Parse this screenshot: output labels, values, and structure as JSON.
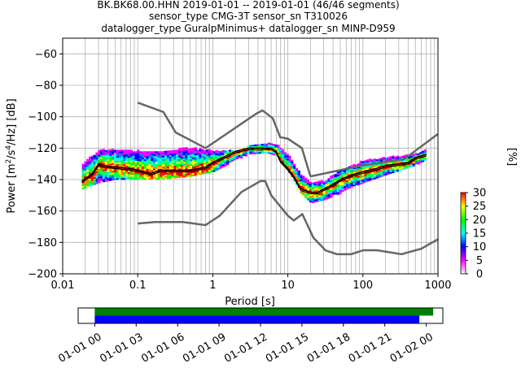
{
  "header": {
    "line1": "BK.BK68.00.HHN   2019-01-01 -- 2019-01-01  (46/46 segments)",
    "line2": "sensor_type CMG-3T sensor_sn T310026",
    "line3": "datalogger_type GuralpMinimus+ datalogger_sn MINP-D959"
  },
  "chart_data": [
    {
      "type": "heatmap",
      "title": "BK.BK68.00.HHN   2019-01-01 -- 2019-01-01  (46/46 segments)",
      "xlabel": "Period [s]",
      "ylabel": "Power [m²/s⁴/Hz] [dB]",
      "x_scale": "log",
      "xlim": [
        0.01,
        1000
      ],
      "ylim": [
        -200,
        -50
      ],
      "x_ticks": [
        0.01,
        0.1,
        1,
        10,
        100,
        1000
      ],
      "x_tick_labels": [
        "0.01",
        "0.1",
        "1",
        "10",
        "100",
        "1000"
      ],
      "y_ticks": [
        -200,
        -180,
        -160,
        -140,
        -120,
        -100,
        -80,
        -60
      ],
      "y_tick_labels": [
        "−200",
        "−180",
        "−160",
        "−140",
        "−120",
        "−100",
        "−80",
        "−60"
      ],
      "grid": true,
      "colorbar": {
        "label": "[%]",
        "range": [
          0,
          30
        ],
        "ticks": [
          0,
          5,
          10,
          15,
          20,
          25,
          30
        ],
        "tick_labels": [
          "0",
          "5",
          "10",
          "15",
          "20",
          "25",
          "30"
        ],
        "colors": [
          "#ffffff",
          "#ff00ff",
          "#0000ff",
          "#00ffff",
          "#00ff00",
          "#ffff00",
          "#ff0000"
        ]
      },
      "series": [
        {
          "name": "NHNM",
          "color": "#666666",
          "x": [
            0.1,
            0.22,
            0.32,
            0.8,
            3.8,
            4.6,
            6.3,
            7.9,
            10.0,
            15.4,
            20.0
          ],
          "y": [
            -91,
            -97,
            -110,
            -120,
            -98,
            -96,
            -101,
            -113,
            -114,
            -120,
            -138
          ],
          "x2": [
            20.0,
            50,
            100,
            354,
            1000
          ],
          "y2": [
            -138,
            -134,
            -131,
            -127,
            -111
          ]
        },
        {
          "name": "NLNM",
          "color": "#666666",
          "x": [
            0.1,
            0.17,
            0.4,
            0.8,
            1.24,
            2.4,
            4.3,
            5.0,
            6.0,
            10.0,
            12.0,
            15.6,
            21.9,
            31.6,
            45,
            70,
            101,
            154,
            328,
            600,
            1000
          ],
          "y": [
            -168,
            -167,
            -167,
            -169,
            -163,
            -148,
            -141,
            -141,
            -150,
            -163,
            -166,
            -162,
            -177,
            -185,
            -187.5,
            -187.5,
            -185,
            -185,
            -187.5,
            -184,
            -178
          ]
        },
        {
          "name": "mean",
          "color": "#000000",
          "x": [
            0.018,
            0.025,
            0.03,
            0.035,
            0.05,
            0.08,
            0.1,
            0.15,
            0.2,
            0.3,
            0.5,
            0.8,
            1.0,
            1.5,
            2.0,
            3.0,
            4.0,
            5.0,
            6.0,
            7.0,
            8.0,
            10.0,
            12.0,
            15.0,
            20.0,
            25.0,
            30.0,
            40.0,
            50.0,
            70.0,
            100.0,
            150.0,
            200.0,
            300.0,
            400.0,
            500.0,
            700.0
          ],
          "y": [
            -141,
            -136,
            -130,
            -131,
            -132,
            -133,
            -134,
            -136,
            -134,
            -134,
            -134,
            -132,
            -129,
            -125,
            -122,
            -120,
            -120,
            -120,
            -120,
            -122,
            -128,
            -133,
            -138,
            -146,
            -148,
            -148,
            -146,
            -143,
            -140,
            -137,
            -135,
            -133,
            -131,
            -130,
            -129,
            -126,
            -124
          ]
        },
        {
          "name": "mode",
          "color": "#000000",
          "x": [
            0.018,
            0.025,
            0.03,
            0.035,
            0.05,
            0.08,
            0.1,
            0.15,
            0.2,
            0.3,
            0.5,
            0.8,
            1.0,
            1.5,
            2.0,
            3.0,
            4.0,
            5.0,
            6.0,
            7.0,
            8.0,
            10.0,
            12.0,
            15.0,
            20.0,
            25.0,
            30.0,
            40.0,
            50.0,
            70.0,
            100.0,
            150.0,
            200.0,
            300.0,
            400.0,
            500.0,
            700.0
          ],
          "y": [
            -142,
            -137,
            -131,
            -132,
            -133,
            -134,
            -135,
            -137,
            -135,
            -135,
            -135,
            -133,
            -130,
            -126,
            -123,
            -121,
            -121,
            -121,
            -121,
            -123,
            -129,
            -134,
            -139,
            -147,
            -149,
            -149,
            -147,
            -144,
            -141,
            -138,
            -136,
            -134,
            -132,
            -131,
            -130,
            -127,
            -125
          ]
        }
      ],
      "psd_band": {
        "x": [
          0.018,
          0.03,
          0.05,
          0.1,
          0.2,
          0.5,
          1.0,
          2.0,
          3.0,
          5.0,
          7.0,
          10.0,
          15.0,
          20.0,
          30.0,
          50.0,
          100.0,
          200.0,
          500.0,
          700.0
        ],
        "upper": [
          -130,
          -121,
          -121,
          -122,
          -122,
          -120,
          -122,
          -122,
          -118,
          -117,
          -118,
          -125,
          -138,
          -142,
          -141,
          -134,
          -128,
          -126,
          -124,
          -121
        ],
        "lower": [
          -146,
          -142,
          -140,
          -140,
          -140,
          -138,
          -135,
          -128,
          -124,
          -123,
          -125,
          -135,
          -150,
          -155,
          -153,
          -149,
          -142,
          -137,
          -131,
          -127
        ]
      }
    },
    {
      "type": "bar",
      "title": "",
      "x_tick_labels": [
        "01-01 00",
        "01-01 03",
        "01-01 06",
        "01-01 09",
        "01-01 12",
        "01-01 15",
        "01-01 18",
        "01-01 21",
        "01-02 00"
      ],
      "x_hours": [
        0,
        3,
        6,
        9,
        12,
        15,
        18,
        21,
        24
      ],
      "xlim_hours": [
        -1.2,
        25.2
      ],
      "series": [
        {
          "name": "data",
          "color": "#008000",
          "start_hour": 0,
          "end_hour": 24.5
        },
        {
          "name": "psd",
          "color": "#0000ff",
          "start_hour": 0,
          "end_hour": 23.5
        }
      ]
    }
  ]
}
